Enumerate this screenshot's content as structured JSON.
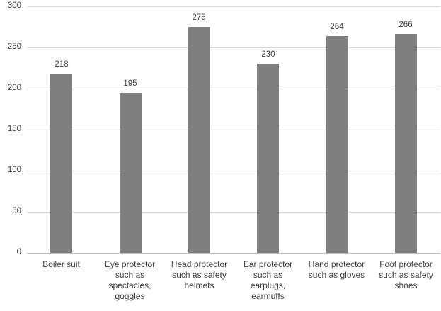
{
  "chart_data": {
    "type": "bar",
    "title": "",
    "xlabel": "",
    "ylabel": "",
    "categories": [
      "Boiler suit",
      "Eye protector\nsuch as\nspectacles,\ngoggles",
      "Head protector\nsuch as safety\nhelmets",
      "Ear protector\nsuch as\nearplugs,\nearmuffs",
      "Hand protector\nsuch as gloves",
      "Foot protector\nsuch as safety\nshoes"
    ],
    "values": [
      218,
      195,
      275,
      230,
      264,
      266
    ],
    "ylim": [
      0,
      300
    ],
    "ytick_step": 50,
    "ytick_labels": [
      "0",
      "50",
      "100",
      "150",
      "200",
      "250",
      "300"
    ],
    "grid": "horizontal",
    "legend": "none",
    "colors": {
      "bar": "#7f7f7f",
      "gridline": "#d9d9d9",
      "axis_line": "#bfbfbf",
      "text": "#404040",
      "background": "#ffffff"
    }
  }
}
